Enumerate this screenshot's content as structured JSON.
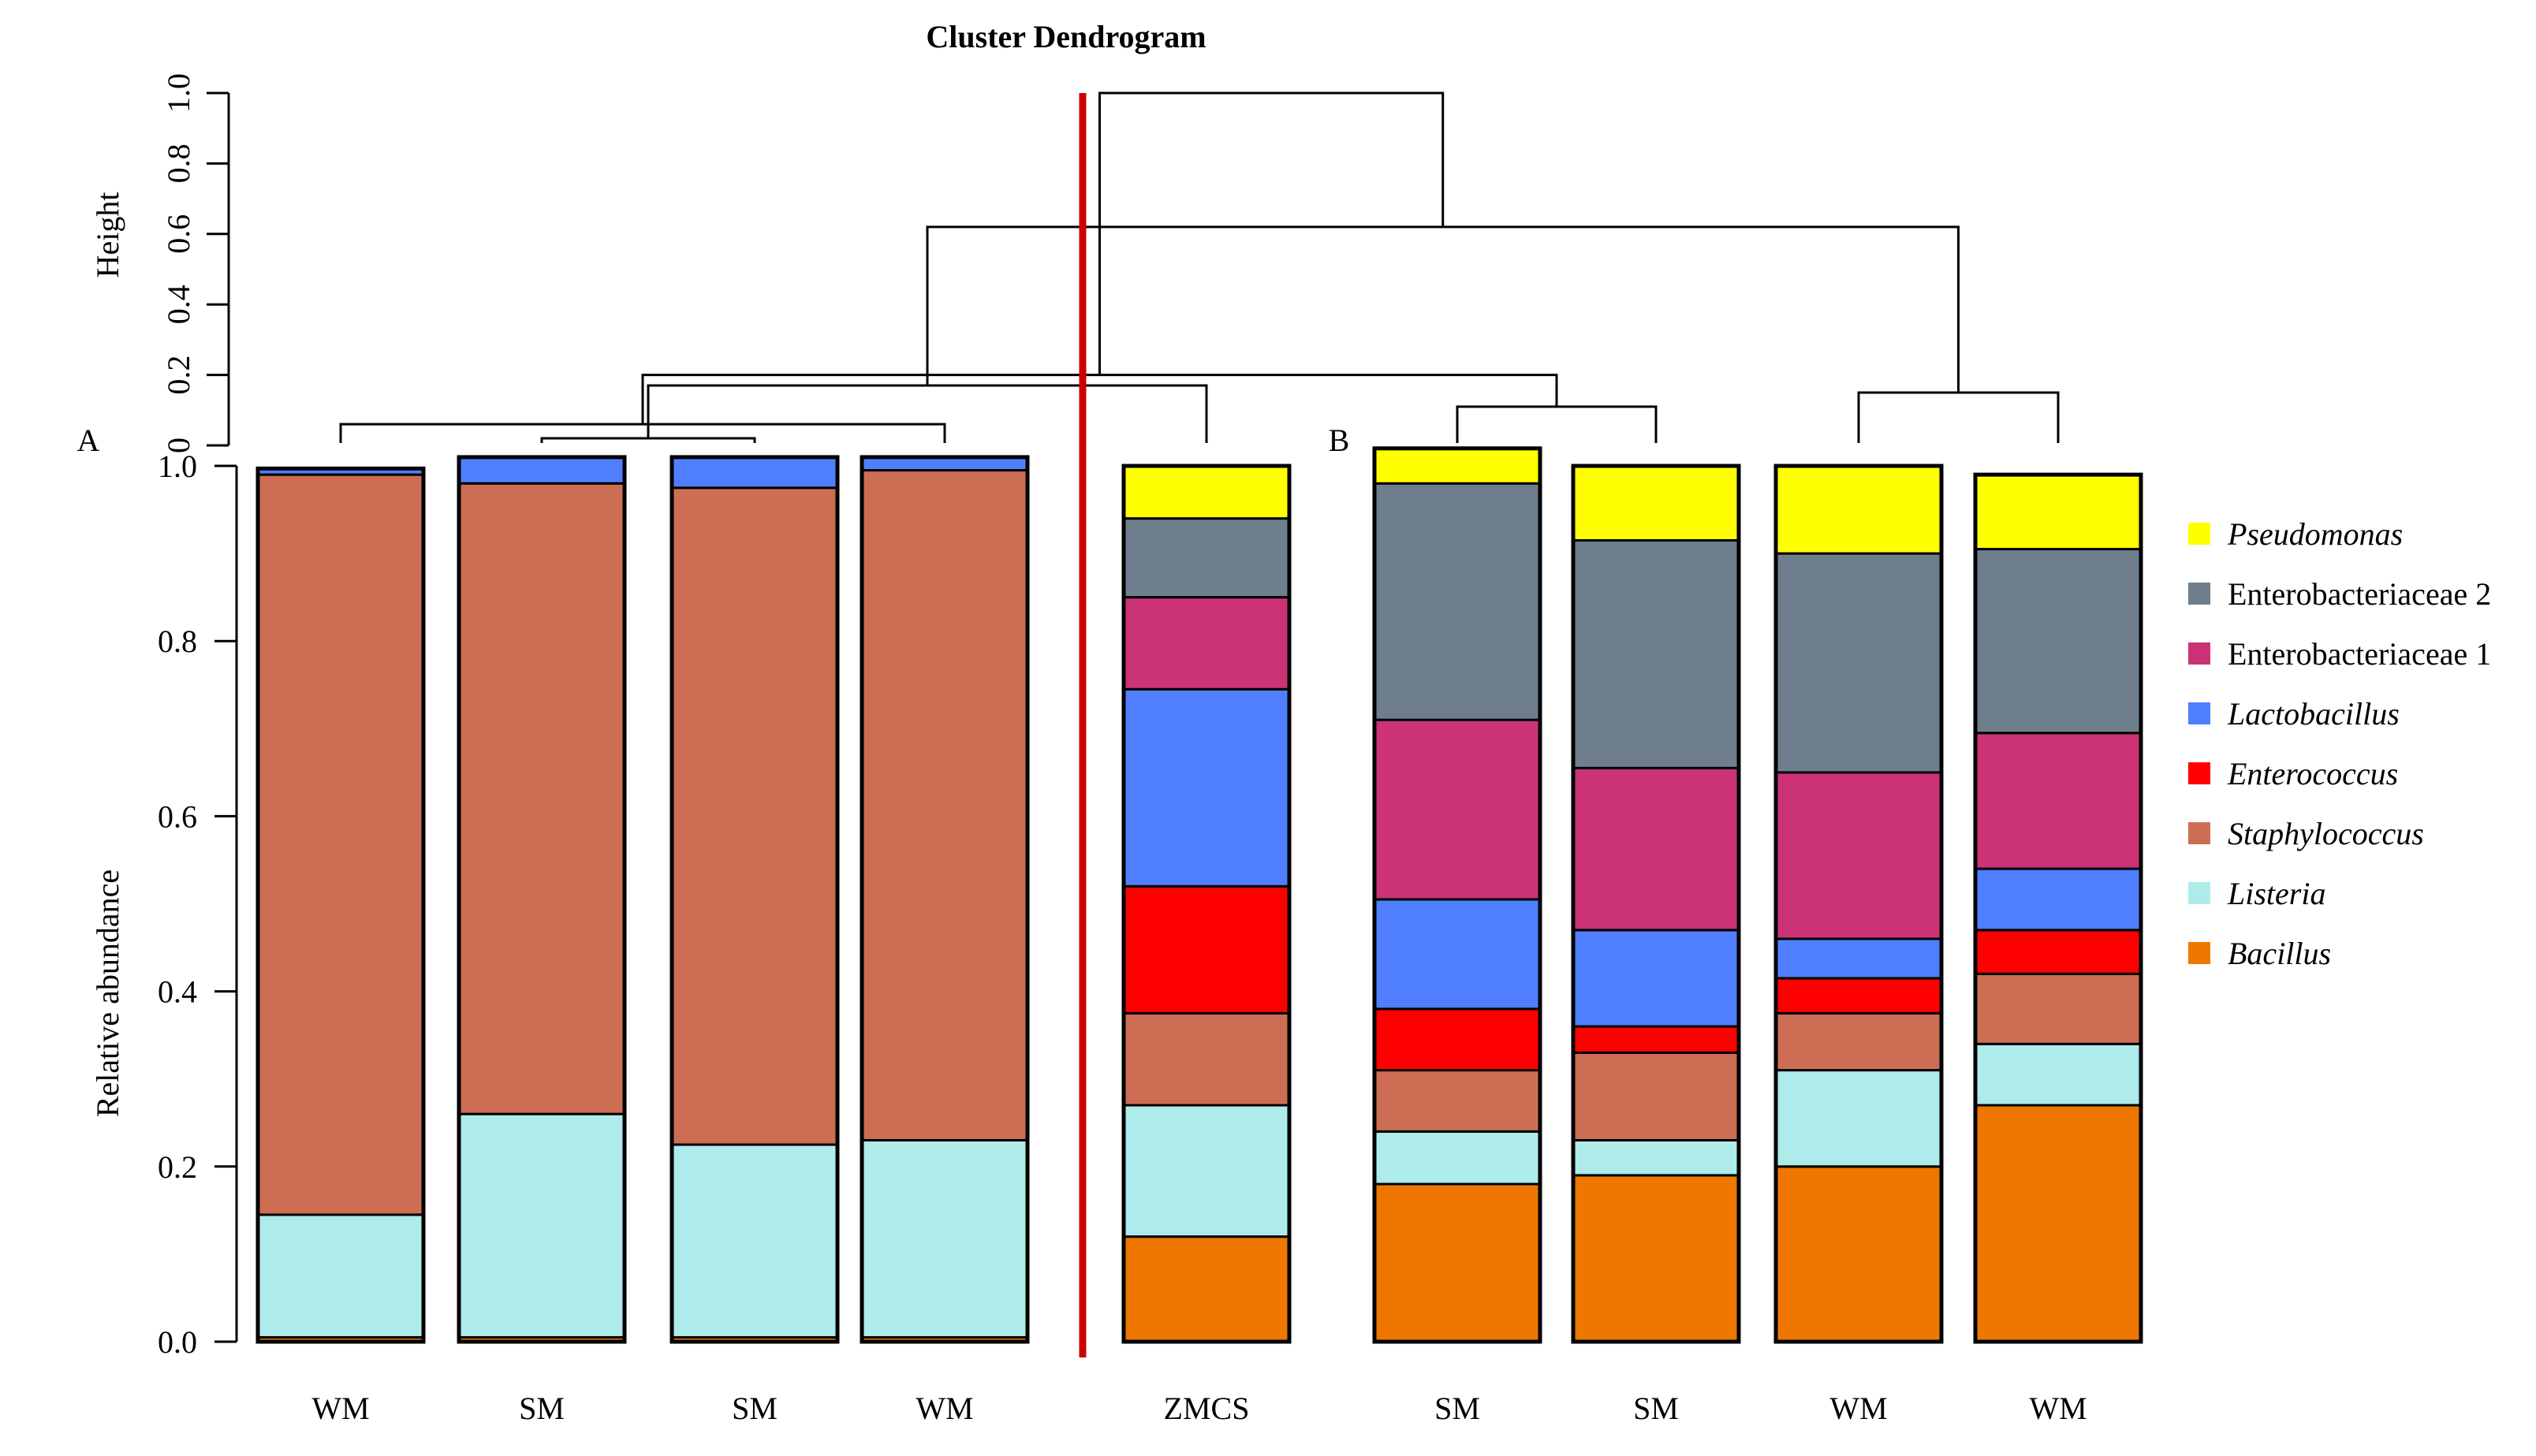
{
  "chart_data": [
    {
      "type": "dendrogram",
      "title": "Cluster Dendrogram",
      "ylabel": "Height",
      "ylim": [
        0,
        1.0
      ],
      "y_ticks": [
        "0",
        "0.2",
        "0.4",
        "0.6",
        "0.8",
        "1.0"
      ],
      "leaf_order": [
        "WM",
        "SM",
        "SM",
        "WM",
        "ZMCS",
        "SM",
        "SM",
        "WM",
        "WM"
      ],
      "merges": [
        {
          "left": 1,
          "right": 2,
          "height": 0.02
        },
        {
          "left": 0,
          "right": 3,
          "height": 0.06
        },
        {
          "left": 5,
          "right": 6,
          "height": 0.11
        },
        {
          "left": 7,
          "right": 8,
          "height": 0.15
        },
        {
          "left": 4,
          "right": 9,
          "height": 0.17
        },
        {
          "left": 10,
          "right": 11,
          "height": 0.2
        },
        {
          "left": 12,
          "right": 13,
          "height": 0.62
        },
        {
          "left": 14,
          "right": 15,
          "height": 1.0
        }
      ],
      "cut_label_left": "A",
      "cut_label_right": "B"
    },
    {
      "type": "bar",
      "stacked": true,
      "ylabel": "Relative abundance",
      "ylim": [
        0,
        1.0
      ],
      "y_ticks": [
        "0.0",
        "0.2",
        "0.4",
        "0.6",
        "0.8",
        "1.0"
      ],
      "categories": [
        "WM",
        "SM",
        "SM",
        "WM",
        "ZMCS",
        "SM",
        "SM",
        "WM",
        "WM"
      ],
      "series": [
        {
          "name": "Bacillus",
          "italic": true,
          "color": "#EE7700",
          "values": [
            0.005,
            0.005,
            0.005,
            0.005,
            0.12,
            0.18,
            0.19,
            0.2,
            0.27
          ]
        },
        {
          "name": "Listeria",
          "italic": true,
          "color": "#AEEBEB",
          "values": [
            0.14,
            0.255,
            0.22,
            0.225,
            0.15,
            0.06,
            0.04,
            0.11,
            0.07
          ]
        },
        {
          "name": "Staphylococcus",
          "italic": true,
          "color": "#CD6E54",
          "values": [
            0.845,
            0.72,
            0.75,
            0.765,
            0.105,
            0.07,
            0.1,
            0.065,
            0.08
          ]
        },
        {
          "name": "Enterococcus",
          "italic": true,
          "color": "#FF0000",
          "values": [
            0,
            0,
            0,
            0,
            0.145,
            0.07,
            0.03,
            0.04,
            0.05
          ]
        },
        {
          "name": "Lactobacillus",
          "italic": true,
          "color": "#4F7FFF",
          "values": [
            0.007,
            0.03,
            0.035,
            0.015,
            0.225,
            0.125,
            0.11,
            0.045,
            0.07
          ]
        },
        {
          "name": "Enterobacteriaceae 1",
          "italic": false,
          "color": "#CC3377",
          "values": [
            0,
            0,
            0,
            0,
            0.105,
            0.205,
            0.185,
            0.19,
            0.155
          ]
        },
        {
          "name": "Enterobacteriaceae 2",
          "italic": false,
          "color": "#6E7E8C",
          "values": [
            0,
            0,
            0,
            0,
            0.09,
            0.27,
            0.26,
            0.25,
            0.21
          ]
        },
        {
          "name": "Pseudomonas",
          "italic": true,
          "color": "#FFFF00",
          "values": [
            0,
            0,
            0,
            0,
            0.06,
            0.04,
            0.085,
            0.1,
            0.085
          ]
        }
      ],
      "legend_position": "right",
      "separator_color": "#CC0000"
    }
  ]
}
